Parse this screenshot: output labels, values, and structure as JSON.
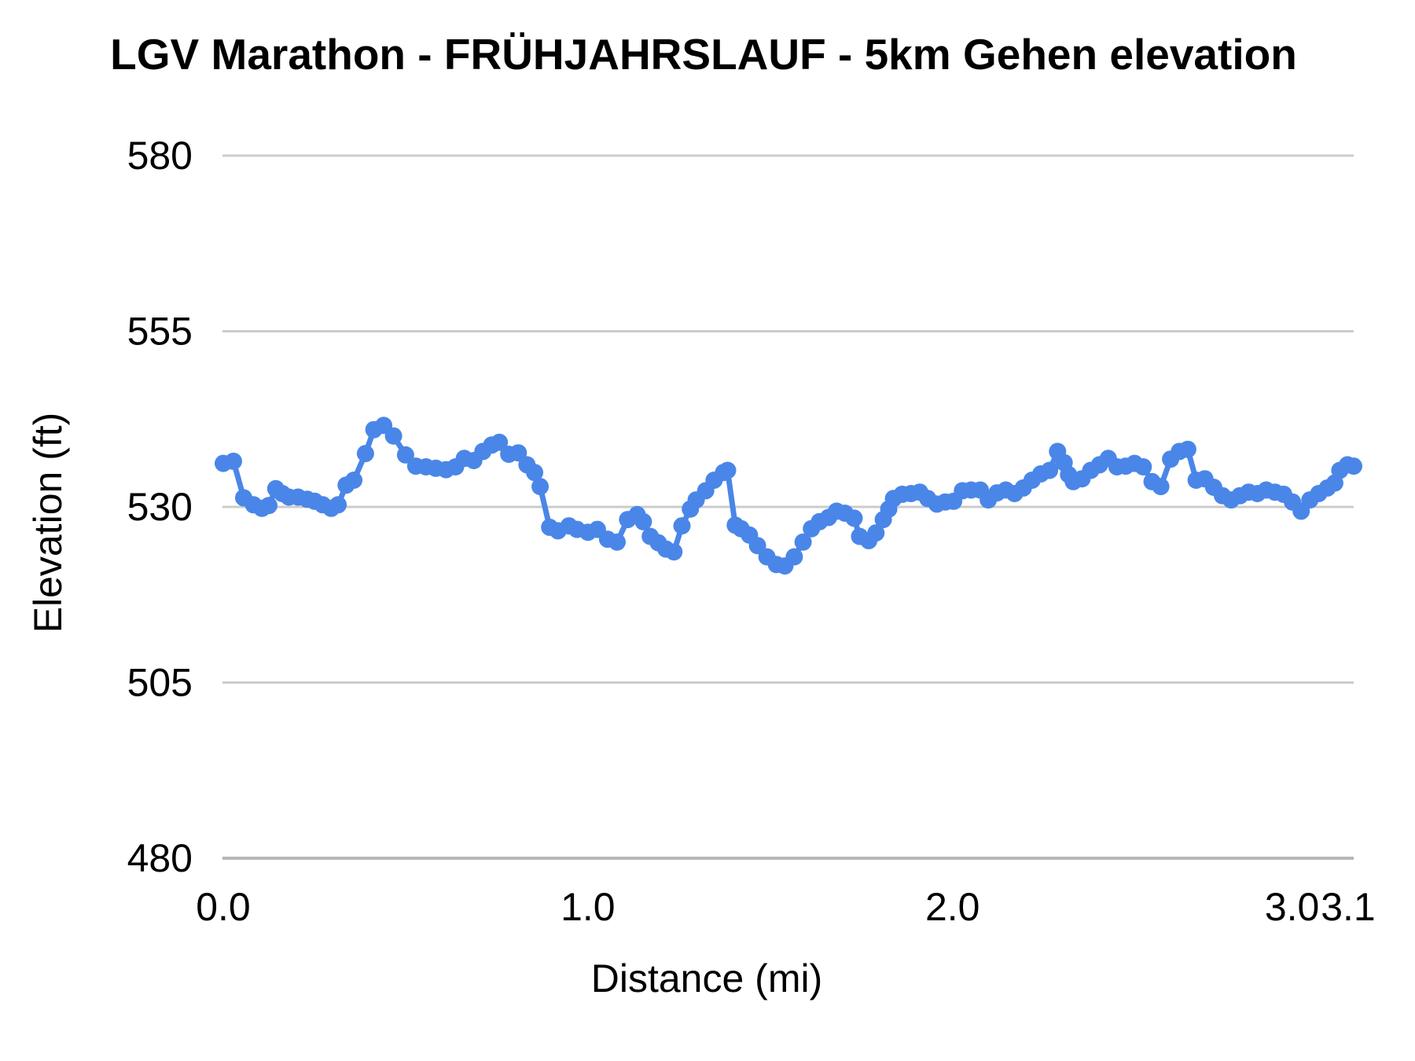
{
  "page": {
    "background": "#ffffff"
  },
  "chart_data": {
    "type": "line",
    "title": "LGV Marathon - FRÜHJAHRSLAUF - 5km Gehen elevation",
    "xlabel": "Distance (mi)",
    "ylabel": "Elevation (ft)",
    "xlim": [
      0,
      3.1
    ],
    "ylim": [
      480,
      580
    ],
    "y_ticks": [
      580,
      555,
      530,
      505,
      480
    ],
    "x_ticks": [
      {
        "label": "0.0",
        "value": 0.0
      },
      {
        "label": "1.0",
        "value": 1.0
      },
      {
        "label": "2.0",
        "value": 2.0
      },
      {
        "label": "3.0",
        "value": 3.0
      },
      {
        "label": "3.1",
        "value": 3.1
      }
    ],
    "grid": "horizontal",
    "legend": "none",
    "series_color": "#4a86e8",
    "gridline_color": "#cccccc",
    "baseline_color": "#b7b7b7",
    "text_color": "#000000",
    "marker": "circle",
    "x": [
      0.0,
      0.028,
      0.056,
      0.083,
      0.106,
      0.125,
      0.144,
      0.162,
      0.18,
      0.205,
      0.23,
      0.251,
      0.273,
      0.296,
      0.315,
      0.337,
      0.358,
      0.39,
      0.413,
      0.44,
      0.467,
      0.5,
      0.528,
      0.556,
      0.583,
      0.611,
      0.637,
      0.661,
      0.687,
      0.712,
      0.736,
      0.757,
      0.783,
      0.809,
      0.833,
      0.854,
      0.869,
      0.895,
      0.918,
      0.948,
      0.97,
      1.0,
      1.026,
      1.054,
      1.08,
      1.109,
      1.135,
      1.152,
      1.171,
      1.193,
      1.214,
      1.236,
      1.258,
      1.281,
      1.297,
      1.323,
      1.346,
      1.372,
      1.383,
      1.404,
      1.42,
      1.443,
      1.465,
      1.491,
      1.517,
      1.54,
      1.566,
      1.59,
      1.613,
      1.635,
      1.66,
      1.682,
      1.705,
      1.73,
      1.745,
      1.77,
      1.79,
      1.81,
      1.825,
      1.838,
      1.862,
      1.886,
      1.91,
      1.932,
      1.957,
      1.98,
      2.003,
      2.027,
      2.051,
      2.076,
      2.098,
      2.122,
      2.146,
      2.17,
      2.194,
      2.218,
      2.242,
      2.266,
      2.288,
      2.306,
      2.318,
      2.331,
      2.355,
      2.379,
      2.403,
      2.427,
      2.451,
      2.475,
      2.499,
      2.523,
      2.547,
      2.571,
      2.598,
      2.622,
      2.645,
      2.668,
      2.692,
      2.716,
      2.74,
      2.764,
      2.788,
      2.812,
      2.836,
      2.86,
      2.884,
      2.908,
      2.932,
      2.956,
      2.98,
      3.004,
      3.028,
      3.048,
      3.062,
      3.083,
      3.1
    ],
    "y": [
      536.2,
      536.5,
      531.3,
      530.3,
      529.8,
      530.2,
      532.6,
      531.9,
      531.4,
      531.4,
      531.1,
      530.8,
      530.3,
      529.8,
      530.3,
      533.1,
      533.8,
      537.6,
      541.0,
      541.6,
      540.1,
      537.4,
      535.8,
      535.7,
      535.5,
      535.3,
      535.7,
      536.9,
      536.6,
      537.9,
      538.8,
      539.2,
      537.5,
      537.7,
      536.0,
      534.9,
      532.9,
      527.1,
      526.6,
      527.3,
      526.8,
      526.4,
      526.8,
      525.4,
      525.0,
      528.2,
      528.9,
      527.9,
      525.8,
      524.9,
      524.0,
      523.6,
      527.3,
      529.7,
      531.0,
      532.3,
      533.8,
      534.9,
      535.2,
      527.4,
      526.9,
      526.0,
      524.5,
      522.9,
      521.8,
      521.6,
      522.9,
      525.0,
      526.9,
      527.9,
      528.5,
      529.4,
      529.1,
      528.4,
      525.8,
      525.2,
      526.3,
      528.2,
      529.7,
      531.2,
      531.8,
      531.9,
      532.1,
      531.2,
      530.4,
      530.7,
      530.8,
      532.3,
      532.4,
      532.4,
      531.0,
      532.0,
      532.4,
      531.9,
      532.7,
      533.8,
      534.7,
      535.2,
      537.9,
      536.3,
      534.6,
      533.6,
      534.0,
      535.2,
      536.0,
      536.9,
      535.7,
      535.8,
      536.2,
      535.7,
      533.6,
      532.9,
      536.8,
      537.9,
      538.2,
      533.8,
      534.0,
      532.8,
      531.6,
      531.0,
      531.6,
      532.1,
      531.9,
      532.4,
      532.1,
      531.8,
      530.7,
      529.4,
      531.0,
      531.9,
      532.7,
      533.4,
      535.2,
      536.0,
      535.8
    ]
  }
}
